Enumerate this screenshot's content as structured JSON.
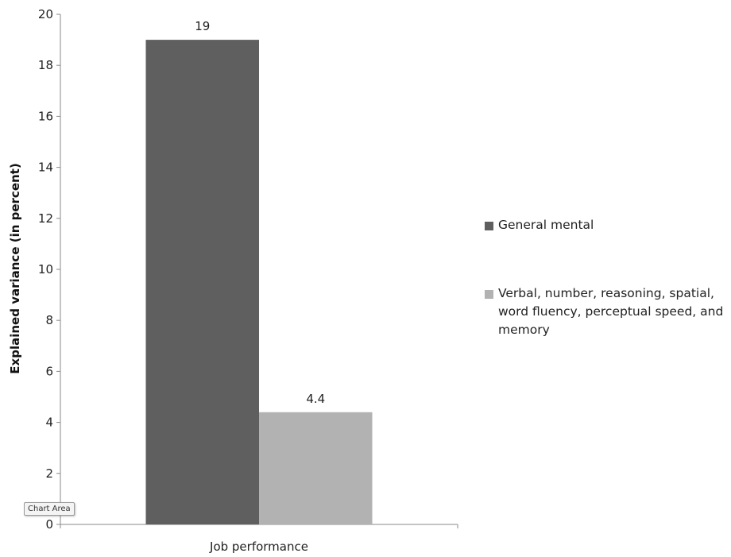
{
  "chart_data": {
    "type": "bar",
    "categories": [
      "Job performance"
    ],
    "series": [
      {
        "name": "General mental",
        "values": [
          19
        ],
        "color": "#5f5f5f",
        "data_label": "19"
      },
      {
        "name": "Verbal, number, reasoning, spatial, word fluency, perceptual speed, and memory",
        "values": [
          4.4
        ],
        "color": "#b2b2b2",
        "data_label": "4.4"
      }
    ],
    "title": "",
    "xlabel": "",
    "ylabel": "Explained variance (in percent)",
    "ylim": [
      0,
      20
    ],
    "yticks": [
      "0",
      "2",
      "4",
      "6",
      "8",
      "10",
      "12",
      "14",
      "16",
      "18",
      "20"
    ],
    "grid": false,
    "legend_position": "right"
  },
  "overlay": {
    "tooltip_text": "Chart Area"
  }
}
